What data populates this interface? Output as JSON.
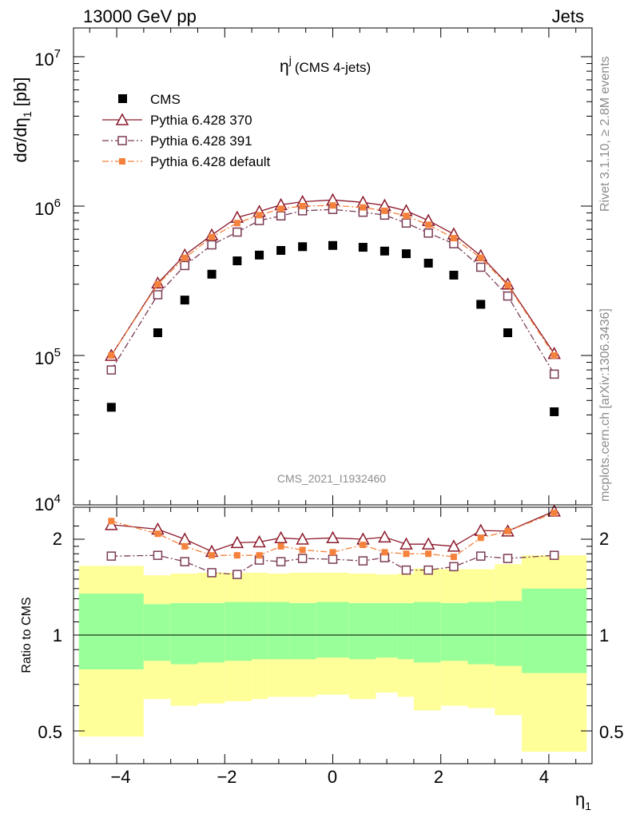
{
  "header": {
    "left": "13000 GeV pp",
    "right": "Jets"
  },
  "side_labels": {
    "rivet": "Rivet 3.1.10, ≥ 2.8M events",
    "mcplots": "mcplots.cern.ch [arXiv:1306.3436]"
  },
  "chart_data": [
    {
      "type": "scatter",
      "title": "η",
      "title_sup": "j",
      "title_suffix": "(CMS 4-jets)",
      "watermark": "CMS_2021_I1932460",
      "ylabel": "dσ/dη",
      "ylabel_sub": "1",
      "ylabel_unit": "[pb]",
      "yscale": "log",
      "ylim": [
        10000,
        16000000
      ],
      "xlim": [
        -4.8,
        4.8
      ],
      "y_ticks": [
        {
          "value": 10000,
          "base": "10",
          "exp": "4"
        },
        {
          "value": 100000,
          "base": "10",
          "exp": "5"
        },
        {
          "value": 1000000,
          "base": "10",
          "exp": "6"
        },
        {
          "value": 10000000,
          "base": "10",
          "exp": "7"
        }
      ],
      "x": [
        -4.1,
        -3.24,
        -2.74,
        -2.24,
        -1.77,
        -1.36,
        -0.96,
        -0.56,
        0.0,
        0.56,
        0.96,
        1.36,
        1.77,
        2.24,
        2.74,
        3.24,
        4.1
      ],
      "legend": [
        "CMS",
        "Pythia 6.428 370",
        "Pythia 6.428 391",
        "Pythia 6.428 default"
      ],
      "series": [
        {
          "name": "CMS",
          "color": "#000000",
          "marker": "filled-square",
          "values": [
            45000,
            142000,
            235000,
            350000,
            430000,
            470000,
            505000,
            535000,
            545000,
            530000,
            500000,
            480000,
            415000,
            345000,
            220000,
            142000,
            42000
          ]
        },
        {
          "name": "Pythia 6.428 370",
          "color": "#8b1a2b",
          "marker": "open-triangle",
          "line": "solid",
          "values": [
            100000,
            305000,
            470000,
            640000,
            840000,
            920000,
            1020000,
            1070000,
            1100000,
            1060000,
            1010000,
            930000,
            800000,
            650000,
            465000,
            300000,
            103000
          ]
        },
        {
          "name": "Pythia 6.428 391",
          "color": "#7a3b55",
          "marker": "open-square",
          "line": "dashdot",
          "values": [
            80000,
            255000,
            400000,
            550000,
            670000,
            800000,
            860000,
            930000,
            950000,
            910000,
            870000,
            770000,
            660000,
            560000,
            390000,
            250000,
            75000
          ]
        },
        {
          "name": "Pythia 6.428 default",
          "color": "#f4823c",
          "marker": "filled-square",
          "line": "dashdot",
          "values": [
            100000,
            300000,
            450000,
            620000,
            770000,
            870000,
            960000,
            1000000,
            1010000,
            980000,
            930000,
            860000,
            750000,
            610000,
            450000,
            295000,
            100000
          ]
        }
      ]
    },
    {
      "type": "line",
      "ylabel": "Ratio to CMS",
      "yscale": "log",
      "ylim": [
        0.42,
        2.4
      ],
      "xlim": [
        -4.8,
        4.8
      ],
      "x_label": "η",
      "x_label_sub": "1",
      "y_ticks": [
        {
          "value": 0.5,
          "label": "0.5"
        },
        {
          "value": 1,
          "label": "1"
        },
        {
          "value": 2,
          "label": "2"
        }
      ],
      "x_ticks": [
        {
          "value": -4,
          "label": "−4"
        },
        {
          "value": -2,
          "label": "−2"
        },
        {
          "value": 0,
          "label": "0"
        },
        {
          "value": 2,
          "label": "2"
        },
        {
          "value": 4,
          "label": "4"
        }
      ],
      "bin_edges": [
        -4.7,
        -3.5,
        -3.0,
        -2.5,
        -2.0,
        -1.5,
        -1.2,
        -0.8,
        -0.3,
        0.3,
        0.8,
        1.2,
        1.5,
        2.0,
        2.5,
        3.0,
        3.5,
        4.7
      ],
      "band_yellow": {
        "color": "#ffff99",
        "low": [
          0.48,
          0.63,
          0.6,
          0.61,
          0.62,
          0.63,
          0.64,
          0.64,
          0.65,
          0.63,
          0.66,
          0.64,
          0.58,
          0.6,
          0.59,
          0.56,
          0.43
        ],
        "high": [
          1.65,
          1.54,
          1.56,
          1.57,
          1.57,
          1.57,
          1.56,
          1.57,
          1.57,
          1.56,
          1.55,
          1.56,
          1.62,
          1.61,
          1.61,
          1.67,
          1.78
        ]
      },
      "band_green": {
        "color": "#99ff99",
        "low": [
          0.78,
          0.83,
          0.81,
          0.82,
          0.83,
          0.84,
          0.84,
          0.84,
          0.85,
          0.84,
          0.85,
          0.84,
          0.82,
          0.83,
          0.81,
          0.8,
          0.76
        ]
      },
      "band_green_high": [
        1.35,
        1.25,
        1.26,
        1.26,
        1.27,
        1.27,
        1.27,
        1.26,
        1.27,
        1.26,
        1.26,
        1.26,
        1.27,
        1.26,
        1.27,
        1.28,
        1.4
      ],
      "series": [
        {
          "name": "Pythia 6.428 370",
          "color": "#8b1a2b",
          "marker": "open-triangle",
          "line": "solid",
          "values": [
            2.22,
            2.15,
            2.0,
            1.83,
            1.95,
            1.96,
            2.02,
            2.0,
            2.02,
            2.0,
            2.03,
            1.93,
            1.93,
            1.9,
            2.13,
            2.12,
            2.45
          ]
        },
        {
          "name": "Pythia 6.428 391",
          "color": "#7a3b55",
          "marker": "open-square",
          "line": "dashdot",
          "values": [
            1.77,
            1.78,
            1.7,
            1.57,
            1.55,
            1.72,
            1.7,
            1.74,
            1.73,
            1.71,
            1.75,
            1.6,
            1.6,
            1.64,
            1.77,
            1.74,
            1.78
          ]
        },
        {
          "name": "Pythia 6.428 default",
          "color": "#f4823c",
          "marker": "filled-square",
          "line": "dashdot",
          "values": [
            2.28,
            2.08,
            1.9,
            1.78,
            1.78,
            1.78,
            1.9,
            1.85,
            1.82,
            1.92,
            1.82,
            1.8,
            1.8,
            1.76,
            2.02,
            2.12,
            2.42
          ]
        }
      ]
    }
  ]
}
